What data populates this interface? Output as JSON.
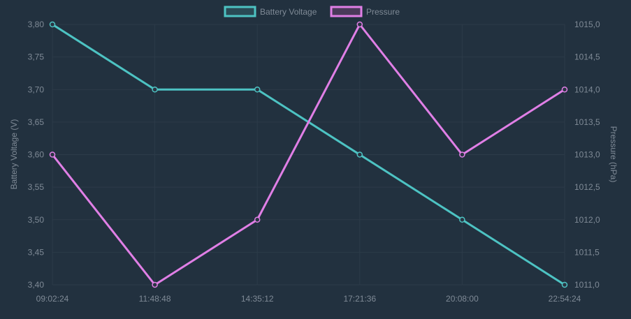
{
  "chart_data": {
    "type": "line",
    "x": [
      "09:02:24",
      "11:48:48",
      "14:35:12",
      "17:21:36",
      "20:08:00",
      "22:54:24"
    ],
    "series": [
      {
        "name": "Battery Voltage",
        "axis": "left",
        "color": "#4dc3c3",
        "values": [
          3.8,
          3.7,
          3.7,
          3.6,
          3.5,
          3.4
        ]
      },
      {
        "name": "Pressure",
        "axis": "right",
        "color": "#e07fe6",
        "values": [
          1013.0,
          1011.0,
          1012.0,
          1015.0,
          1013.0,
          1014.0
        ]
      }
    ],
    "y_left": {
      "label": "Battery Voltage (V)",
      "min": 3.4,
      "max": 3.8,
      "ticks": [
        "3,80",
        "3,75",
        "3,70",
        "3,65",
        "3,60",
        "3,55",
        "3,50",
        "3,45",
        "3,40"
      ]
    },
    "y_right": {
      "label": "Pressure (hPa)",
      "min": 1011.0,
      "max": 1015.0,
      "ticks": [
        "1015,0",
        "1014,5",
        "1014,0",
        "1013,5",
        "1013,0",
        "1012,5",
        "1012,0",
        "1011,5",
        "1011,0"
      ]
    },
    "grid": true,
    "legend": "top-center"
  }
}
